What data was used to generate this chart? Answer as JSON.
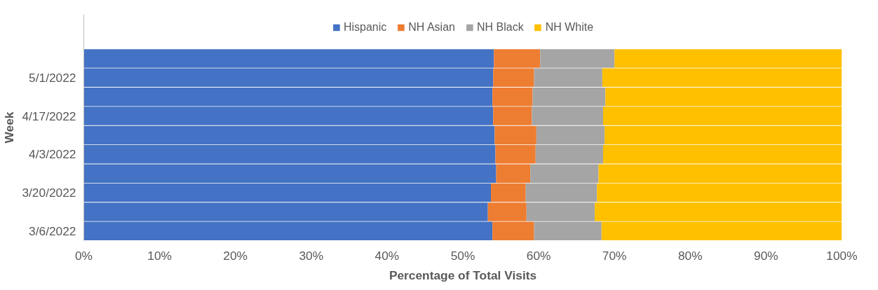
{
  "chart_data": {
    "type": "bar",
    "orientation": "horizontal",
    "stacked": true,
    "xlabel": "Percentage of Total Visits",
    "ylabel": "Week",
    "categories": [
      null,
      "5/1/2022",
      null,
      "4/17/2022",
      null,
      "4/3/2022",
      null,
      "3/20/2022",
      null,
      "3/6/2022"
    ],
    "series": [
      {
        "name": "Hispanic",
        "color": "#4472c4",
        "values": [
          54.1,
          54.0,
          53.9,
          54.0,
          54.2,
          54.3,
          54.4,
          53.7,
          53.3,
          53.9
        ]
      },
      {
        "name": "NH Asian",
        "color": "#ed7d31",
        "values": [
          6.1,
          5.4,
          5.3,
          5.1,
          5.5,
          5.3,
          4.5,
          4.6,
          5.1,
          5.5
        ]
      },
      {
        "name": "NH Black",
        "color": "#a5a5a5",
        "values": [
          9.8,
          9.0,
          9.6,
          9.4,
          9.0,
          8.9,
          9.0,
          9.4,
          9.0,
          8.9
        ]
      },
      {
        "name": "NH White",
        "color": "#ffc000",
        "values": [
          30.0,
          31.6,
          31.2,
          31.5,
          31.3,
          31.5,
          32.1,
          32.3,
          32.6,
          31.7
        ]
      }
    ],
    "xlim": [
      0,
      100
    ],
    "xticks": [
      {
        "value": 0,
        "label": "0%"
      },
      {
        "value": 10,
        "label": "10%"
      },
      {
        "value": 20,
        "label": "20%"
      },
      {
        "value": 30,
        "label": "30%"
      },
      {
        "value": 40,
        "label": "40%"
      },
      {
        "value": 50,
        "label": "50%"
      },
      {
        "value": 60,
        "label": "60%"
      },
      {
        "value": 70,
        "label": "70%"
      },
      {
        "value": 80,
        "label": "80%"
      },
      {
        "value": 90,
        "label": "90%"
      },
      {
        "value": 100,
        "label": "100%"
      }
    ],
    "legend": "top",
    "grid": false
  }
}
